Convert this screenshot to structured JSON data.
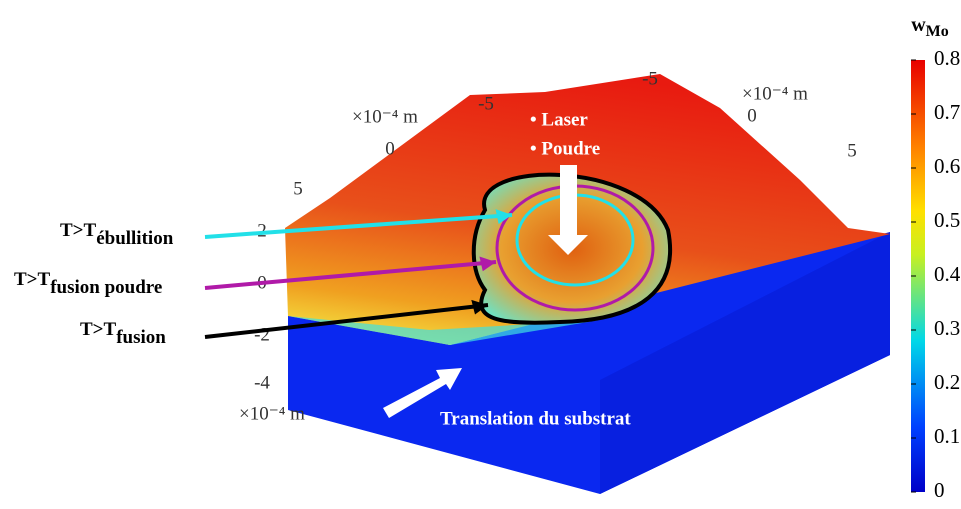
{
  "colorbar": {
    "label": "w",
    "label_sub": "Mo",
    "lim": [
      0,
      0.8
    ],
    "ticks": [
      0,
      0.1,
      0.2,
      0.3,
      0.4,
      0.5,
      0.6,
      0.7,
      0.8
    ]
  },
  "axes": {
    "axis_1": {
      "ticks": [
        5,
        0,
        -5
      ],
      "unit": "×10⁻⁴ m"
    },
    "axis_2": {
      "ticks": [
        -5,
        0,
        5
      ],
      "unit": "×10⁻⁴ m"
    },
    "axis_3": {
      "ticks": [
        2,
        0,
        -2,
        -4
      ],
      "unit": "×10⁻⁴ m"
    }
  },
  "annotations": {
    "laser": "• Laser",
    "poudre": "• Poudre",
    "translation": "Translation du substrat"
  },
  "legend": [
    {
      "label": "T>T",
      "sub": "ébullition",
      "color": "#22e0e8"
    },
    {
      "label": "T>T",
      "sub": "fusion poudre",
      "color": "#b01aa8"
    },
    {
      "label": "T>T",
      "sub": "fusion",
      "color": "#000000"
    }
  ]
}
